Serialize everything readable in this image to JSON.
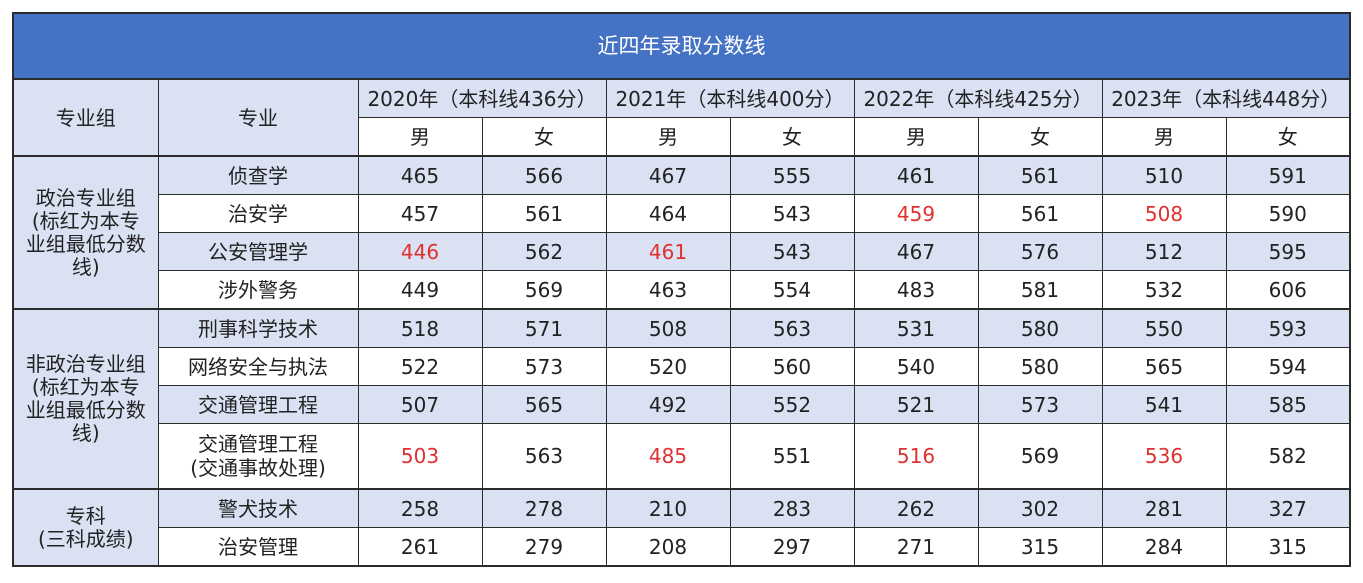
{
  "title": "近四年录取分数线",
  "headers": {
    "group": "专业组",
    "major": "专业",
    "years": [
      "2020年（本科线436分）",
      "2021年（本科线400分）",
      "2022年（本科线425分）",
      "2023年（本科线448分）"
    ],
    "male": "男",
    "female": "女"
  },
  "groups": [
    {
      "name": "政治专业组\n(标红为本专\n业组最低分数\n线)",
      "rows": [
        {
          "major": "侦查学",
          "scores": [
            "465",
            "566",
            "467",
            "555",
            "461",
            "561",
            "510",
            "591"
          ],
          "red": []
        },
        {
          "major": "治安学",
          "scores": [
            "457",
            "561",
            "464",
            "543",
            "459",
            "561",
            "508",
            "590"
          ],
          "red": [
            4,
            6
          ]
        },
        {
          "major": "公安管理学",
          "scores": [
            "446",
            "562",
            "461",
            "543",
            "467",
            "576",
            "512",
            "595"
          ],
          "red": [
            0,
            2
          ]
        },
        {
          "major": "涉外警务",
          "scores": [
            "449",
            "569",
            "463",
            "554",
            "483",
            "581",
            "532",
            "606"
          ],
          "red": []
        }
      ]
    },
    {
      "name": "非政治专业组\n(标红为本专\n业组最低分数\n线)",
      "rows": [
        {
          "major": "刑事科学技术",
          "scores": [
            "518",
            "571",
            "508",
            "563",
            "531",
            "580",
            "550",
            "593"
          ],
          "red": []
        },
        {
          "major": "网络安全与执法",
          "scores": [
            "522",
            "573",
            "520",
            "560",
            "540",
            "580",
            "565",
            "594"
          ],
          "red": []
        },
        {
          "major": "交通管理工程",
          "scores": [
            "507",
            "565",
            "492",
            "552",
            "521",
            "573",
            "541",
            "585"
          ],
          "red": []
        },
        {
          "major": "交通管理工程\n(交通事故处理)",
          "scores": [
            "503",
            "563",
            "485",
            "551",
            "516",
            "569",
            "536",
            "582"
          ],
          "red": [
            0,
            2,
            4,
            6
          ]
        }
      ]
    },
    {
      "name": "专科\n(三科成绩)",
      "rows": [
        {
          "major": "警犬技术",
          "scores": [
            "258",
            "278",
            "210",
            "283",
            "262",
            "302",
            "281",
            "327"
          ],
          "red": []
        },
        {
          "major": "治安管理",
          "scores": [
            "261",
            "279",
            "208",
            "297",
            "271",
            "315",
            "284",
            "315"
          ],
          "red": []
        }
      ]
    }
  ],
  "colors": {
    "title_bg": "#4472c4",
    "header_bg": "#d9e1f2",
    "highlight_text": "#e03030"
  }
}
